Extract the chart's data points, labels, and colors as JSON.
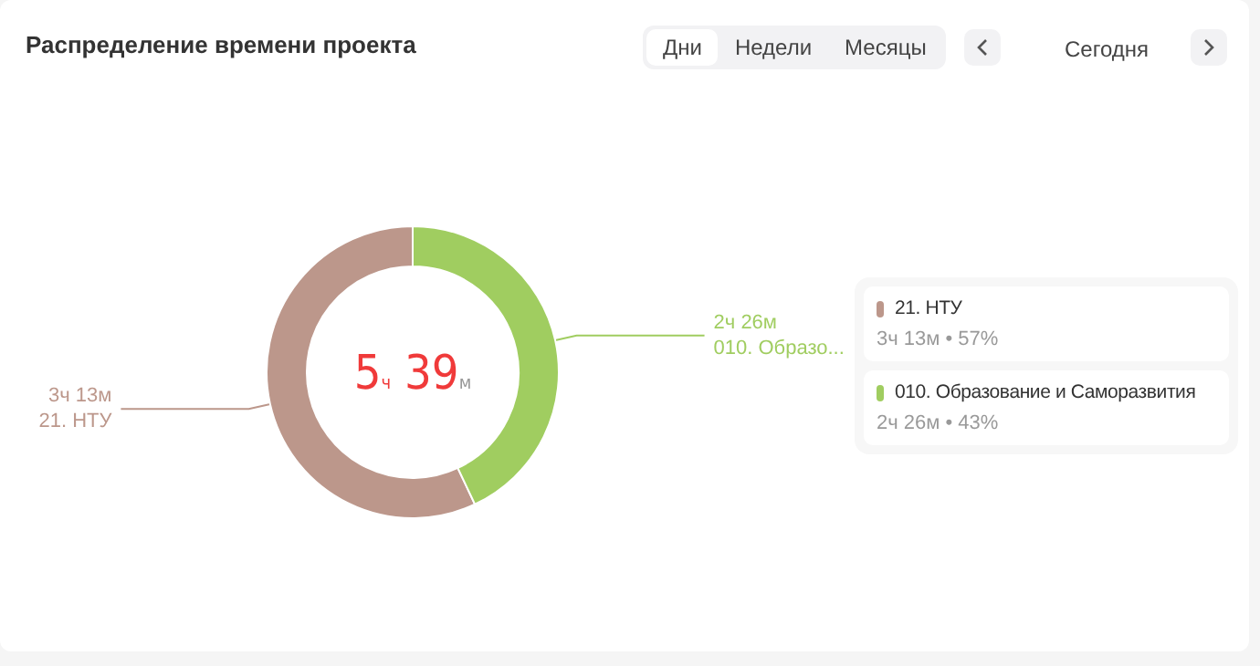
{
  "chart_data": {
    "type": "donut",
    "title": "Распределение времени проекта",
    "categories": [
      "21. НТУ",
      "010. Образование и Саморазвития"
    ],
    "values": [
      57,
      43
    ],
    "value_labels": [
      "3ч 13м • 57%",
      "2ч 26м • 43%"
    ],
    "colors": [
      "#bc978b",
      "#a0cd60"
    ],
    "legend": "right",
    "annotations": [
      "5ч 39м",
      "Дни",
      "Недели",
      "Месяцы",
      "Сегодня",
      {
        "text": "3ч 13м",
        "x": "21. НТУ"
      },
      {
        "text": "21. НТУ",
        "x": "21. НТУ"
      },
      {
        "text": "2ч 26м",
        "x": "010. Образование и Саморазвития"
      },
      {
        "text": "010. Образо...",
        "x": "010. Образование и Саморазвития"
      }
    ]
  }
}
